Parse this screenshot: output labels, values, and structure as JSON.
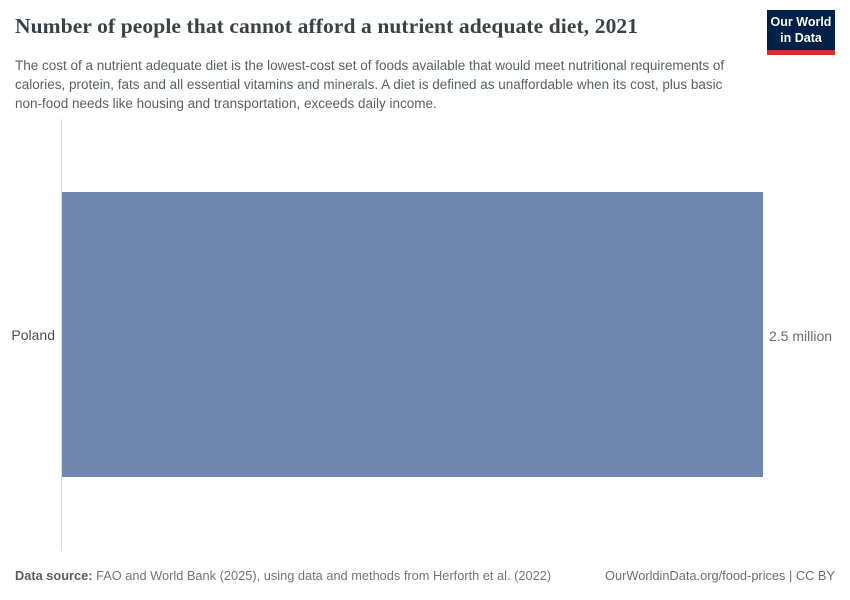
{
  "header": {
    "title": "Number of people that cannot afford a nutrient adequate diet, 2021",
    "subtitle": "The cost of a nutrient adequate diet is the lowest-cost set of foods available that would meet nutritional requirements of calories, protein, fats and all essential vitamins and minerals. A diet is defined as unaffordable when its cost, plus basic non-food needs like housing and transportation, exceeds daily income.",
    "logo": {
      "line1": "Our World",
      "line2": "in Data"
    }
  },
  "chart_data": {
    "type": "bar",
    "orientation": "horizontal",
    "title": "Number of people that cannot afford a nutrient adequate diet, 2021",
    "year": "2021",
    "categories": [
      "Poland"
    ],
    "values": [
      2.5
    ],
    "unit": "million people",
    "value_labels": [
      "2.5 million"
    ],
    "xlabel": "",
    "ylabel": "",
    "xlim": [
      0,
      2.5
    ],
    "grid": false,
    "legend": false,
    "bar_color": "#6f87af",
    "axis_line_color": "#dddddd"
  },
  "footer": {
    "data_source_label": "Data source:",
    "data_source_text": " FAO and World Bank (2025), using data and methods from Herforth et al. (2022)",
    "link_text": "OurWorldinData.org/food-prices | CC BY"
  },
  "colors": {
    "logo_navy": "#002147",
    "logo_red": "#d72d2d",
    "title_color": "#3b4247"
  }
}
